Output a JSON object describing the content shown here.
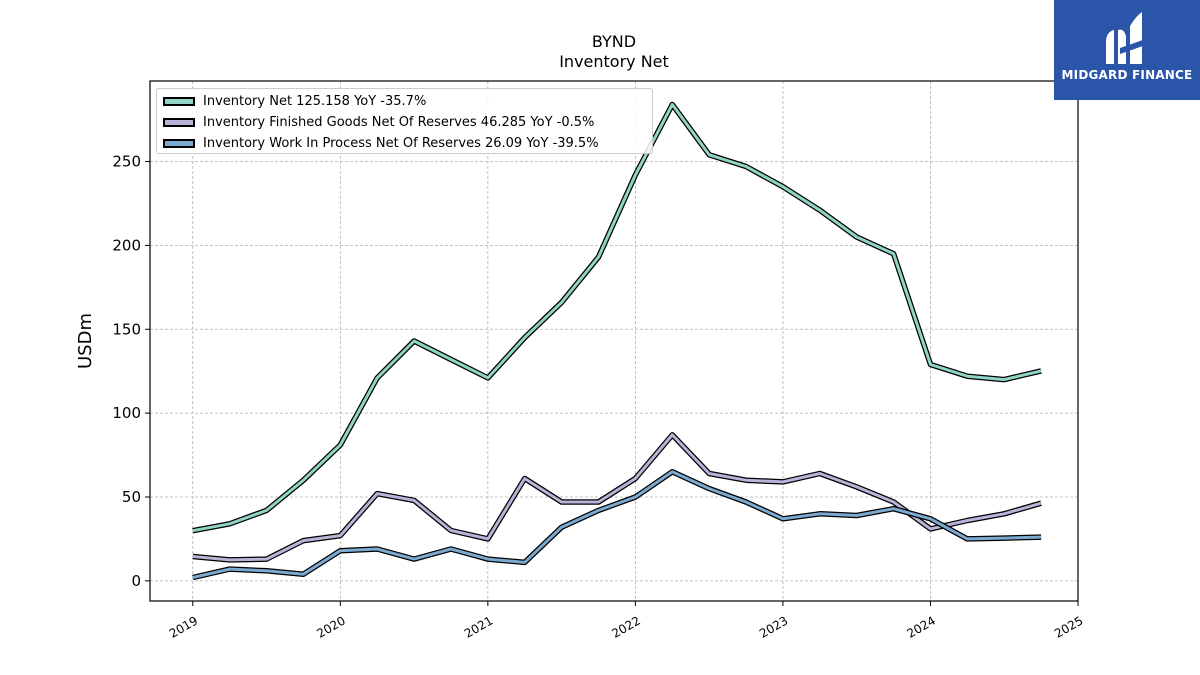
{
  "chart_data": {
    "type": "line",
    "title": "BYND",
    "subtitle": "Inventory Net",
    "xlabel": "",
    "ylabel": "USDm",
    "ylim": [
      -12,
      298
    ],
    "yticks": [
      0,
      50,
      100,
      150,
      200,
      250
    ],
    "xlim": [
      2018.71,
      2025.0
    ],
    "xticks": [
      2019,
      2020,
      2021,
      2022,
      2023,
      2024,
      2025
    ],
    "xtick_labels": [
      "2019",
      "2020",
      "2021",
      "2022",
      "2023",
      "2024",
      "2025"
    ],
    "grid": true,
    "legend_position": "top-left",
    "x": [
      2019.0,
      2019.25,
      2019.5,
      2019.75,
      2020.0,
      2020.25,
      2020.5,
      2020.75,
      2021.0,
      2021.25,
      2021.5,
      2021.75,
      2022.0,
      2022.25,
      2022.5,
      2022.75,
      2023.0,
      2023.25,
      2023.5,
      2023.75,
      2024.0,
      2024.25,
      2024.5,
      2024.75
    ],
    "series": [
      {
        "name": "Inventory Net",
        "legend_label": "Inventory Net  125.158 YoY -35.7%",
        "color": "#8fd4c4",
        "values": [
          29.9,
          34.0,
          42.0,
          60.0,
          81.0,
          121.0,
          143.0,
          132.0,
          121.0,
          145.0,
          166.0,
          193.0,
          242.0,
          284.0,
          254.0,
          247.0,
          235.0,
          221.0,
          205.0,
          195.0,
          129.0,
          122.0,
          120.0,
          125.2
        ]
      },
      {
        "name": "Inventory Finished Goods Net Of Reserves",
        "legend_label": "Inventory Finished Goods Net Of Reserves  46.285 YoY -0.5%",
        "color": "#b9b3d8",
        "values": [
          14.5,
          12.5,
          13.0,
          24.0,
          27.0,
          52.0,
          48.0,
          30.0,
          25.0,
          61.0,
          47.0,
          47.0,
          61.0,
          87.0,
          64.0,
          60.0,
          59.0,
          64.0,
          56.0,
          47.0,
          31.0,
          36.0,
          40.0,
          46.3
        ]
      },
      {
        "name": "Inventory Work In Process Net Of Reserves",
        "legend_label": "Inventory Work In Process Net Of Reserves  26.09 YoY -39.5%",
        "color": "#7ba9d0",
        "values": [
          2.0,
          7.0,
          6.0,
          4.0,
          18.0,
          19.0,
          13.0,
          19.0,
          13.0,
          11.0,
          32.0,
          42.0,
          50.0,
          65.0,
          55.0,
          47.0,
          37.0,
          40.0,
          39.0,
          43.0,
          37.0,
          25.0,
          25.5,
          26.1
        ]
      }
    ]
  },
  "logo": {
    "text": "MIDGARD FINANCE"
  }
}
